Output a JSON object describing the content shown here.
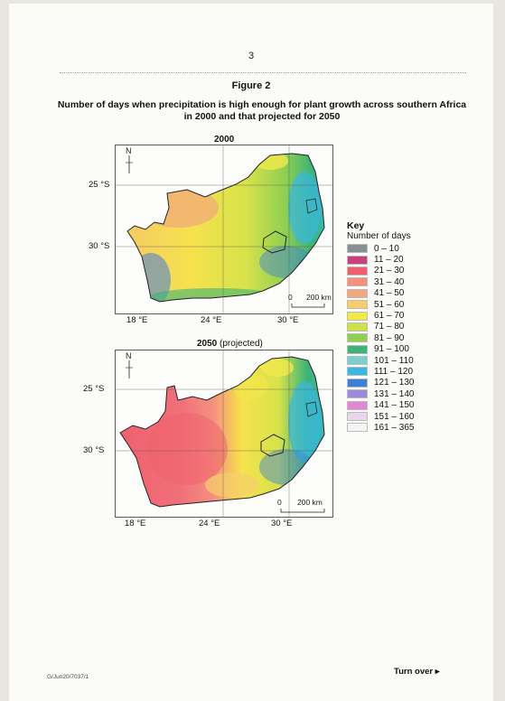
{
  "page_number": "3",
  "figure_label": "Figure 2",
  "title": "Number of days when precipitation is high enough for plant growth across southern Africa in 2000 and that projected for 2050",
  "map_2000": {
    "title": "2000",
    "north": "N",
    "lat_labels": [
      "25 °S",
      "30 °S"
    ],
    "lon_labels": [
      "18 °E",
      "24 °E",
      "30 °E"
    ],
    "scale_zero": "0",
    "scale_label": "200 km"
  },
  "map_2050": {
    "title": "2050",
    "subtitle": "(projected)",
    "north": "N",
    "lat_labels": [
      "25 °S",
      "30 °S"
    ],
    "lon_labels": [
      "18 °E",
      "24 °E",
      "30 °E"
    ],
    "scale_zero": "0",
    "scale_label": "200 km"
  },
  "key": {
    "title": "Key",
    "subtitle": "Number of days",
    "items": [
      {
        "label": "0 – 10",
        "color": "#8a8f95"
      },
      {
        "label": "11 – 20",
        "color": "#c8417a"
      },
      {
        "label": "21 – 30",
        "color": "#ef5f6c"
      },
      {
        "label": "31 – 40",
        "color": "#f58f80"
      },
      {
        "label": "41 – 50",
        "color": "#f2a77d"
      },
      {
        "label": "51 – 60",
        "color": "#f6cf6b"
      },
      {
        "label": "61 – 70",
        "color": "#f2e84c"
      },
      {
        "label": "71 – 80",
        "color": "#cde24a"
      },
      {
        "label": "81 – 90",
        "color": "#8fcf52"
      },
      {
        "label": "91 – 100",
        "color": "#3db475"
      },
      {
        "label": "101 – 110",
        "color": "#79d0cf"
      },
      {
        "label": "111 – 120",
        "color": "#38b8e2"
      },
      {
        "label": "121 – 130",
        "color": "#3f7fd6"
      },
      {
        "label": "131 – 140",
        "color": "#9a8ad8"
      },
      {
        "label": "141 – 150",
        "color": "#e387d4"
      },
      {
        "label": "151 – 160",
        "color": "#ead6ea"
      },
      {
        "label": "161 – 365",
        "color": "#f4f4f4"
      }
    ]
  },
  "footer_code": "G/Jun20/7037/1",
  "turn_over": "Turn over ▸"
}
